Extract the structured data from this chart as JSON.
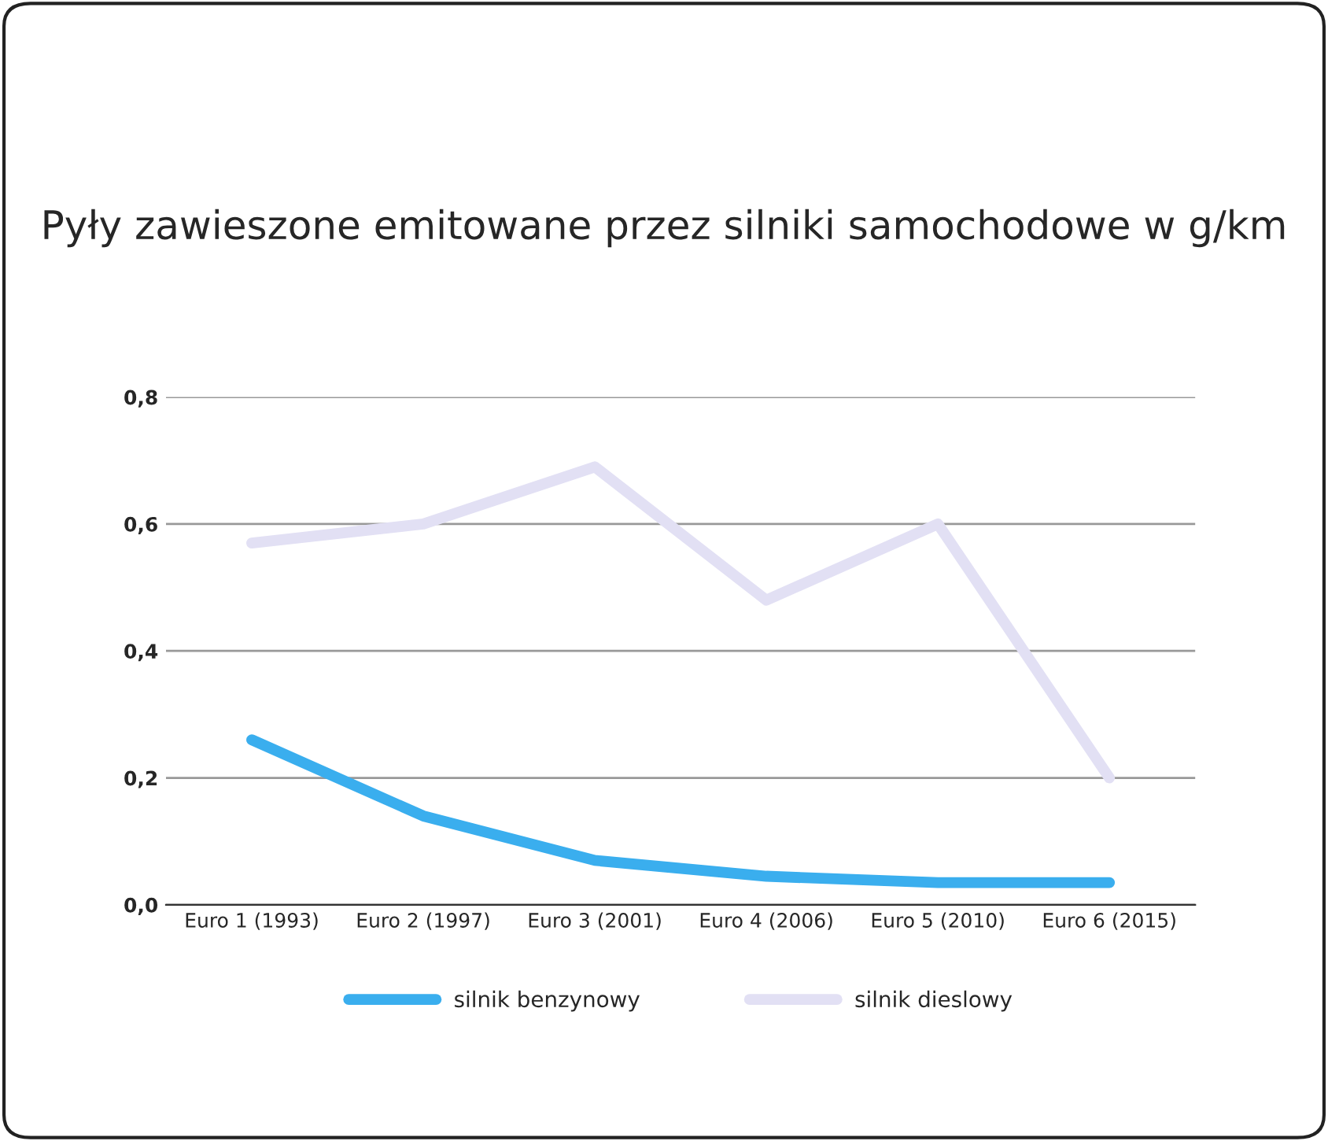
{
  "chart_data": {
    "type": "line",
    "title": "Pyły zawieszone emitowane przez silniki samochodowe w g/km",
    "categories": [
      "Euro 1 (1993)",
      "Euro 2 (1997)",
      "Euro 3 (2001)",
      "Euro 4 (2006)",
      "Euro 5 (2010)",
      "Euro 6 (2015)"
    ],
    "series": [
      {
        "name": "silnik benzynowy",
        "color": "#3aaeee",
        "values": [
          0.26,
          0.14,
          0.07,
          0.045,
          0.035,
          0.035
        ]
      },
      {
        "name": "silnik dieslowy",
        "color": "#e2e0f4",
        "values": [
          0.57,
          0.6,
          0.69,
          0.48,
          0.6,
          0.2
        ]
      }
    ],
    "ylim": [
      0,
      0.8
    ],
    "yticks": [
      {
        "value": 0,
        "label": "0,0"
      },
      {
        "value": 0.2,
        "label": "0,2"
      },
      {
        "value": 0.4,
        "label": "0,4"
      },
      {
        "value": 0.6,
        "label": "0,6"
      },
      {
        "value": 0.8,
        "label": "0,8"
      }
    ],
    "grid": "y",
    "legend": "bottom",
    "marker": "none",
    "line_style": "solid"
  }
}
